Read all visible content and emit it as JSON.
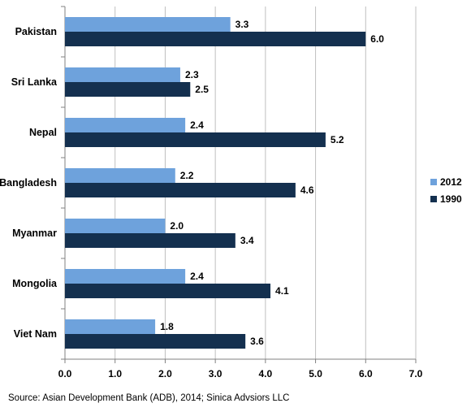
{
  "chart_data": {
    "type": "bar",
    "orientation": "horizontal",
    "categories": [
      "Pakistan",
      "Sri Lanka",
      "Nepal",
      "Bangladesh",
      "Myanmar",
      "Mongolia",
      "Viet Nam"
    ],
    "series": [
      {
        "name": "2012",
        "color": "#6ea2dc",
        "values": [
          3.3,
          2.3,
          2.4,
          2.2,
          2.0,
          2.4,
          1.8
        ]
      },
      {
        "name": "1990",
        "color": "#14304f",
        "values": [
          6.0,
          2.5,
          5.2,
          4.6,
          3.4,
          4.1,
          3.6
        ]
      }
    ],
    "xlim": [
      0,
      7
    ],
    "ticks": [
      "0.0",
      "1.0",
      "2.0",
      "3.0",
      "4.0",
      "5.0",
      "6.0",
      "7.0"
    ],
    "grid": true,
    "legend_position": "right"
  },
  "source": "Source: Asian Development Bank (ADB), 2014; Sinica Advsiors LLC"
}
